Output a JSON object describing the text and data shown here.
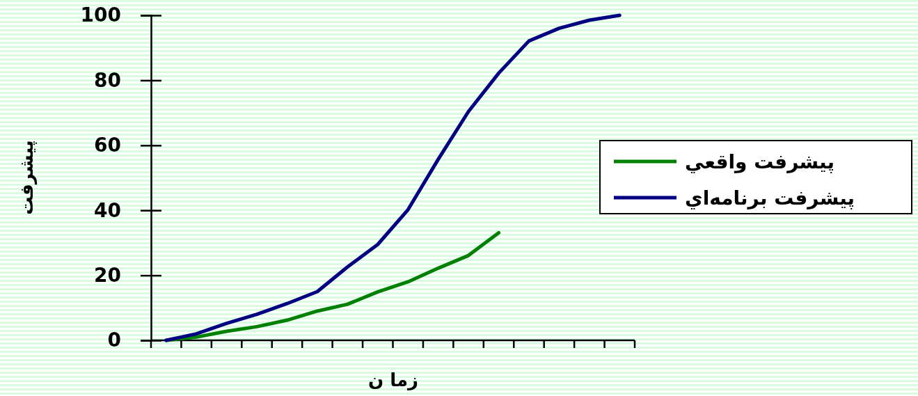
{
  "chart_data": {
    "type": "line",
    "xlabel": "زما ن",
    "ylabel": "پيشرفت",
    "categories": [
      null,
      null,
      null,
      null,
      null,
      null,
      null,
      null,
      null,
      null,
      null,
      null,
      null,
      null,
      null,
      null
    ],
    "ylim": [
      0,
      100
    ],
    "yticks": [
      0,
      20,
      40,
      60,
      80,
      100
    ],
    "grid": false,
    "legend": "right",
    "marker": "none",
    "line_style": "solid",
    "series": [
      {
        "name": "پيشرفت واقعي",
        "color": "#008000",
        "values": [
          0,
          1,
          2.8,
          4.2,
          6.2,
          9,
          11.1,
          14.9,
          18,
          22.2,
          26.1,
          33.1,
          null,
          null,
          null,
          null
        ]
      },
      {
        "name": "پيشرفت برنامه‌اي",
        "color": "#000080",
        "values": [
          0,
          2,
          5.2,
          8,
          11.3,
          15,
          22.6,
          29.5,
          40.2,
          55.7,
          70.4,
          82.2,
          92.1,
          96,
          98.5,
          100
        ]
      }
    ]
  }
}
